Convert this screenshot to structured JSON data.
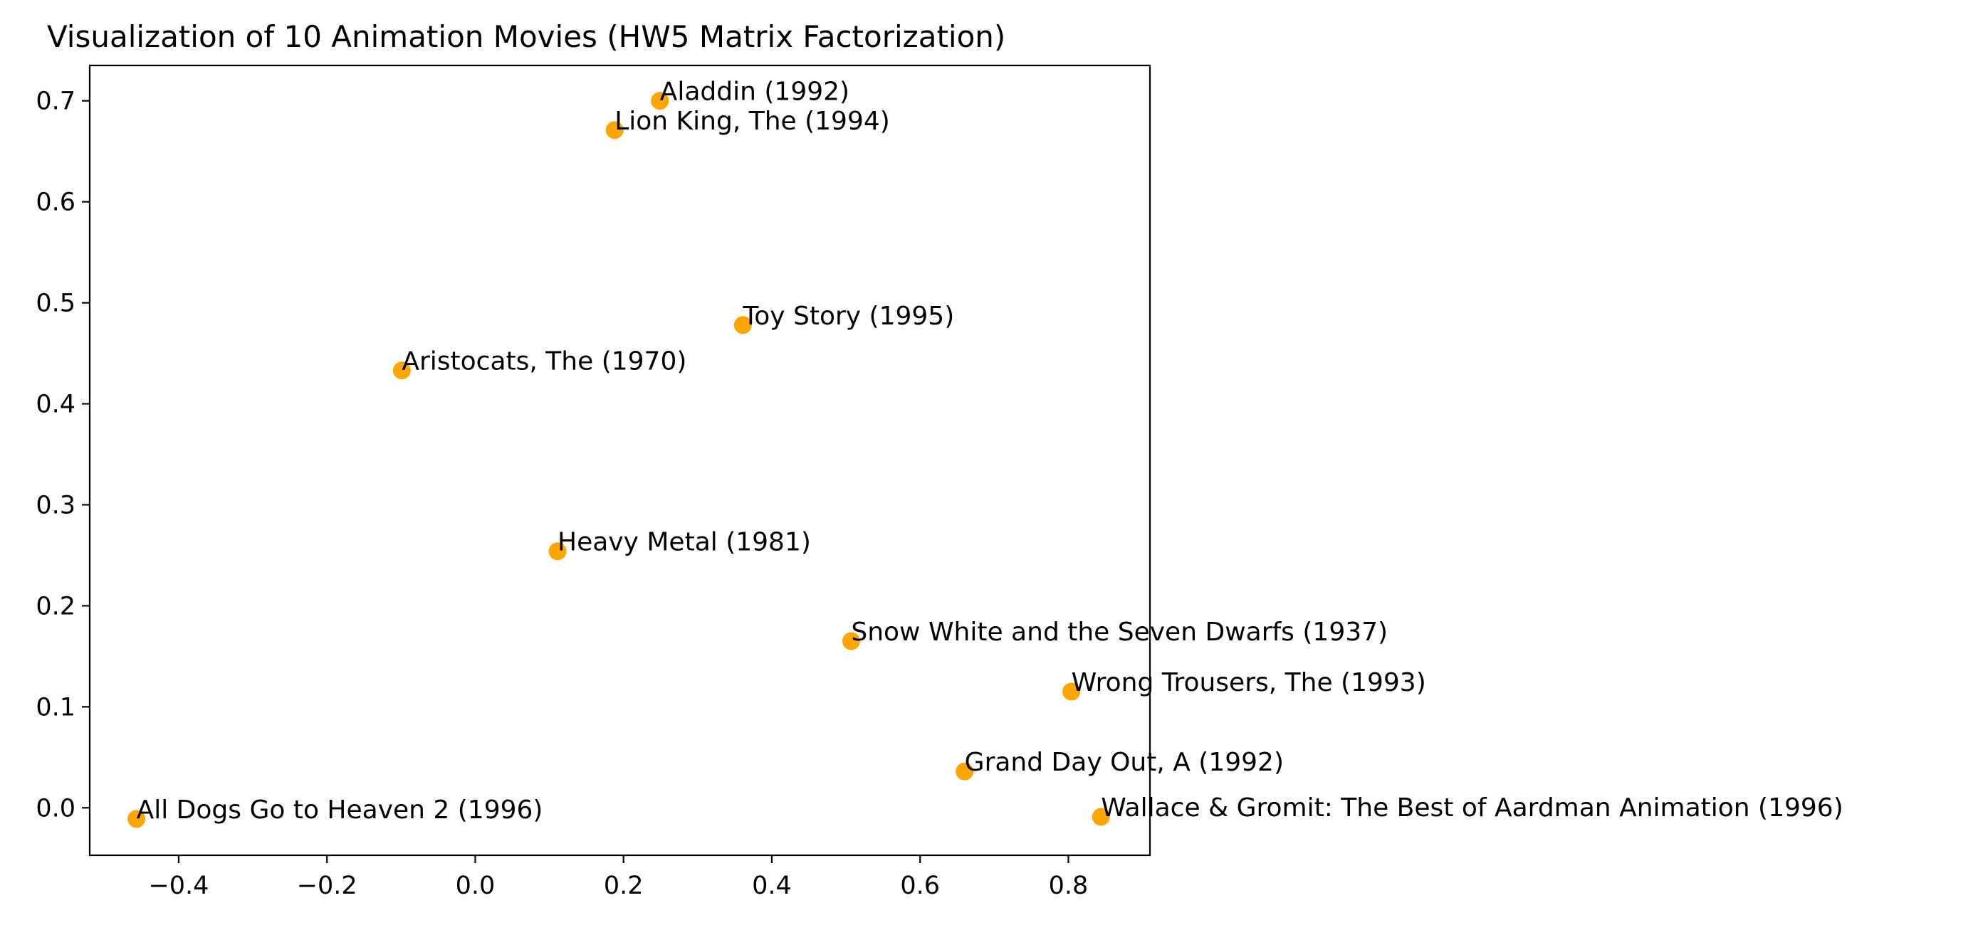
{
  "chart_data": {
    "type": "scatter",
    "title": "Visualization of 10 Animation Movies (HW5 Matrix Factorization)",
    "xlabel": "",
    "ylabel": "",
    "xlim": [
      -0.52,
      0.91
    ],
    "ylim": [
      -0.047,
      0.735
    ],
    "x_ticks": [
      -0.4,
      -0.2,
      0.0,
      0.2,
      0.4,
      0.6,
      0.8
    ],
    "x_tick_labels": [
      "−0.4",
      "−0.2",
      "0.0",
      "0.2",
      "0.4",
      "0.6",
      "0.8"
    ],
    "y_ticks": [
      0.0,
      0.1,
      0.2,
      0.3,
      0.4,
      0.5,
      0.6,
      0.7
    ],
    "y_tick_labels": [
      "0.0",
      "0.1",
      "0.2",
      "0.3",
      "0.4",
      "0.5",
      "0.6",
      "0.7"
    ],
    "grid": false,
    "marker_color": "#FFA500",
    "points": [
      {
        "label": "Aladdin (1992)",
        "x": 0.249,
        "y": 0.7
      },
      {
        "label": "Lion King, The (1994)",
        "x": 0.188,
        "y": 0.671
      },
      {
        "label": "Toy Story (1995)",
        "x": 0.361,
        "y": 0.478
      },
      {
        "label": "Aristocats, The (1970)",
        "x": -0.099,
        "y": 0.433
      },
      {
        "label": "Heavy Metal (1981)",
        "x": 0.111,
        "y": 0.254
      },
      {
        "label": "Snow White and the Seven Dwarfs (1937)",
        "x": 0.507,
        "y": 0.165
      },
      {
        "label": "Wrong Trousers, The (1993)",
        "x": 0.804,
        "y": 0.115
      },
      {
        "label": "Grand Day Out, A (1992)",
        "x": 0.66,
        "y": 0.036
      },
      {
        "label": "All Dogs Go to Heaven 2 (1996)",
        "x": -0.457,
        "y": -0.011
      },
      {
        "label": "Wallace & Gromit: The Best of Aardman Animation (1996)",
        "x": 0.844,
        "y": -0.009
      }
    ]
  }
}
